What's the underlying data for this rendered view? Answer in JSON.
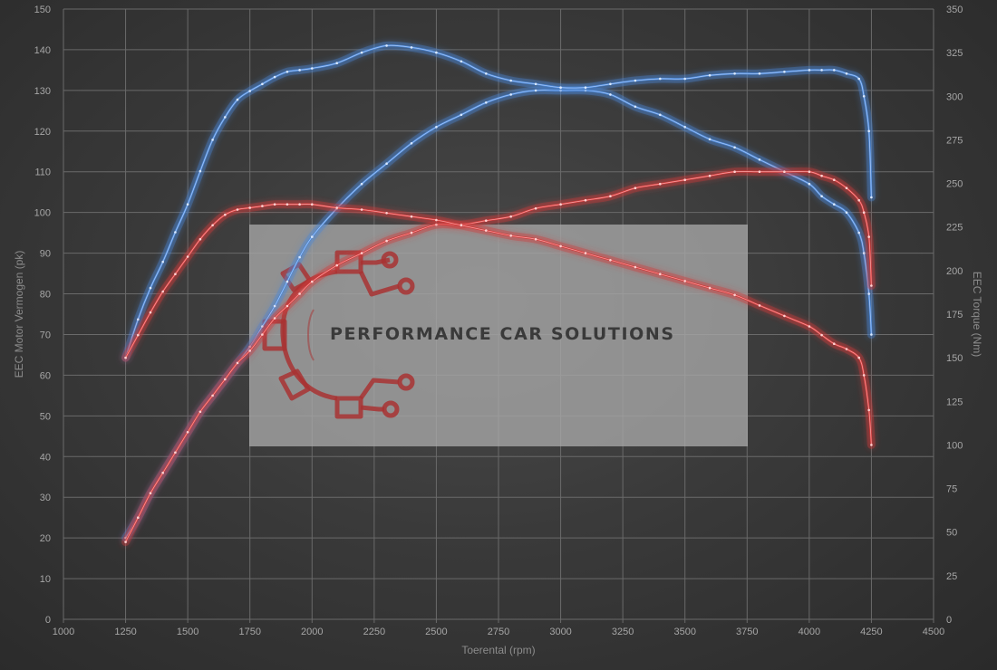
{
  "chart_data": {
    "type": "line",
    "xlabel": "Toerental (rpm)",
    "ylabel_left": "EEC Motor Vermogen (pk)",
    "ylabel_right": "EEC Torque (Nm)",
    "xlim": [
      1000,
      4500
    ],
    "ylim_left": [
      0,
      150
    ],
    "ylim_right": [
      0,
      350
    ],
    "x_ticks": [
      1000,
      1250,
      1500,
      1750,
      2000,
      2250,
      2500,
      2750,
      3000,
      3250,
      3500,
      3750,
      4000,
      4250,
      4500
    ],
    "y_ticks_left": [
      0,
      10,
      20,
      30,
      40,
      50,
      60,
      70,
      80,
      90,
      100,
      110,
      120,
      130,
      140,
      150
    ],
    "y_ticks_right": [
      0,
      25,
      50,
      75,
      100,
      125,
      150,
      175,
      200,
      225,
      250,
      275,
      300,
      325,
      350
    ],
    "grid": true,
    "legend": "none",
    "series": [
      {
        "axis": "left",
        "color": "#4a86d6",
        "x": [
          1250,
          1300,
          1350,
          1400,
          1450,
          1500,
          1550,
          1600,
          1650,
          1700,
          1750,
          1800,
          1850,
          1900,
          1950,
          2000,
          2100,
          2200,
          2300,
          2400,
          2500,
          2600,
          2700,
          2800,
          2900,
          3000,
          3100,
          3200,
          3300,
          3400,
          3500,
          3600,
          3700,
          3800,
          3900,
          4000,
          4050,
          4100,
          4150,
          4200,
          4220,
          4240,
          4250
        ],
        "y": [
          20,
          25,
          31,
          36,
          41,
          46,
          51,
          55,
          59,
          63,
          67,
          72,
          77,
          83,
          89,
          94,
          101,
          107,
          112,
          117,
          121,
          124,
          127,
          129,
          130,
          130,
          130,
          129,
          126,
          124,
          121,
          118,
          116,
          113,
          110,
          107,
          104,
          102,
          100,
          95,
          90,
          80,
          70
        ]
      },
      {
        "axis": "right",
        "color": "#4a86d6",
        "x": [
          1250,
          1300,
          1350,
          1400,
          1450,
          1500,
          1550,
          1600,
          1650,
          1700,
          1750,
          1800,
          1850,
          1900,
          1950,
          2000,
          2100,
          2200,
          2300,
          2400,
          2500,
          2600,
          2700,
          2800,
          2900,
          3000,
          3100,
          3200,
          3300,
          3400,
          3500,
          3600,
          3700,
          3800,
          3900,
          4000,
          4050,
          4100,
          4150,
          4200,
          4220,
          4240,
          4250
        ],
        "y": [
          150,
          172,
          190,
          205,
          222,
          238,
          257,
          275,
          288,
          298,
          303,
          307,
          311,
          314,
          315,
          316,
          319,
          325,
          329,
          328,
          325,
          320,
          313,
          309,
          307,
          305,
          305,
          307,
          309,
          310,
          310,
          312,
          313,
          313,
          314,
          315,
          315,
          315,
          313,
          310,
          300,
          280,
          242
        ]
      },
      {
        "axis": "left",
        "color": "#d23a3a",
        "x": [
          1250,
          1300,
          1350,
          1400,
          1450,
          1500,
          1550,
          1600,
          1650,
          1700,
          1750,
          1800,
          1850,
          1900,
          1950,
          2000,
          2100,
          2200,
          2300,
          2400,
          2500,
          2600,
          2700,
          2800,
          2900,
          3000,
          3100,
          3200,
          3300,
          3400,
          3500,
          3600,
          3700,
          3800,
          3900,
          4000,
          4050,
          4100,
          4150,
          4200,
          4220,
          4240,
          4250
        ],
        "y": [
          19,
          25,
          31,
          36,
          41,
          46,
          51,
          55,
          59,
          63,
          66,
          70,
          74,
          77,
          80,
          83,
          87,
          90,
          93,
          95,
          97,
          97,
          98,
          99,
          101,
          102,
          103,
          104,
          106,
          107,
          108,
          109,
          110,
          110,
          110,
          110,
          109,
          108,
          106,
          103,
          100,
          94,
          82
        ]
      },
      {
        "axis": "right",
        "color": "#d23a3a",
        "x": [
          1250,
          1300,
          1350,
          1400,
          1450,
          1500,
          1550,
          1600,
          1650,
          1700,
          1750,
          1800,
          1850,
          1900,
          1950,
          2000,
          2100,
          2200,
          2300,
          2400,
          2500,
          2600,
          2700,
          2800,
          2900,
          3000,
          3100,
          3200,
          3300,
          3400,
          3500,
          3600,
          3700,
          3800,
          3900,
          4000,
          4050,
          4100,
          4150,
          4200,
          4220,
          4240,
          4250
        ],
        "y": [
          150,
          163,
          176,
          188,
          198,
          208,
          218,
          226,
          232,
          235,
          236,
          237,
          238,
          238,
          238,
          238,
          236,
          235,
          233,
          231,
          229,
          226,
          223,
          220,
          218,
          214,
          210,
          206,
          202,
          198,
          194,
          190,
          186,
          180,
          174,
          168,
          163,
          158,
          155,
          150,
          140,
          120,
          100
        ]
      }
    ]
  },
  "watermark": {
    "text": "PERFORMANCE CAR SOLUTIONS",
    "logo_icon": "gear-circuit-icon",
    "logo_color": "#a83232"
  }
}
